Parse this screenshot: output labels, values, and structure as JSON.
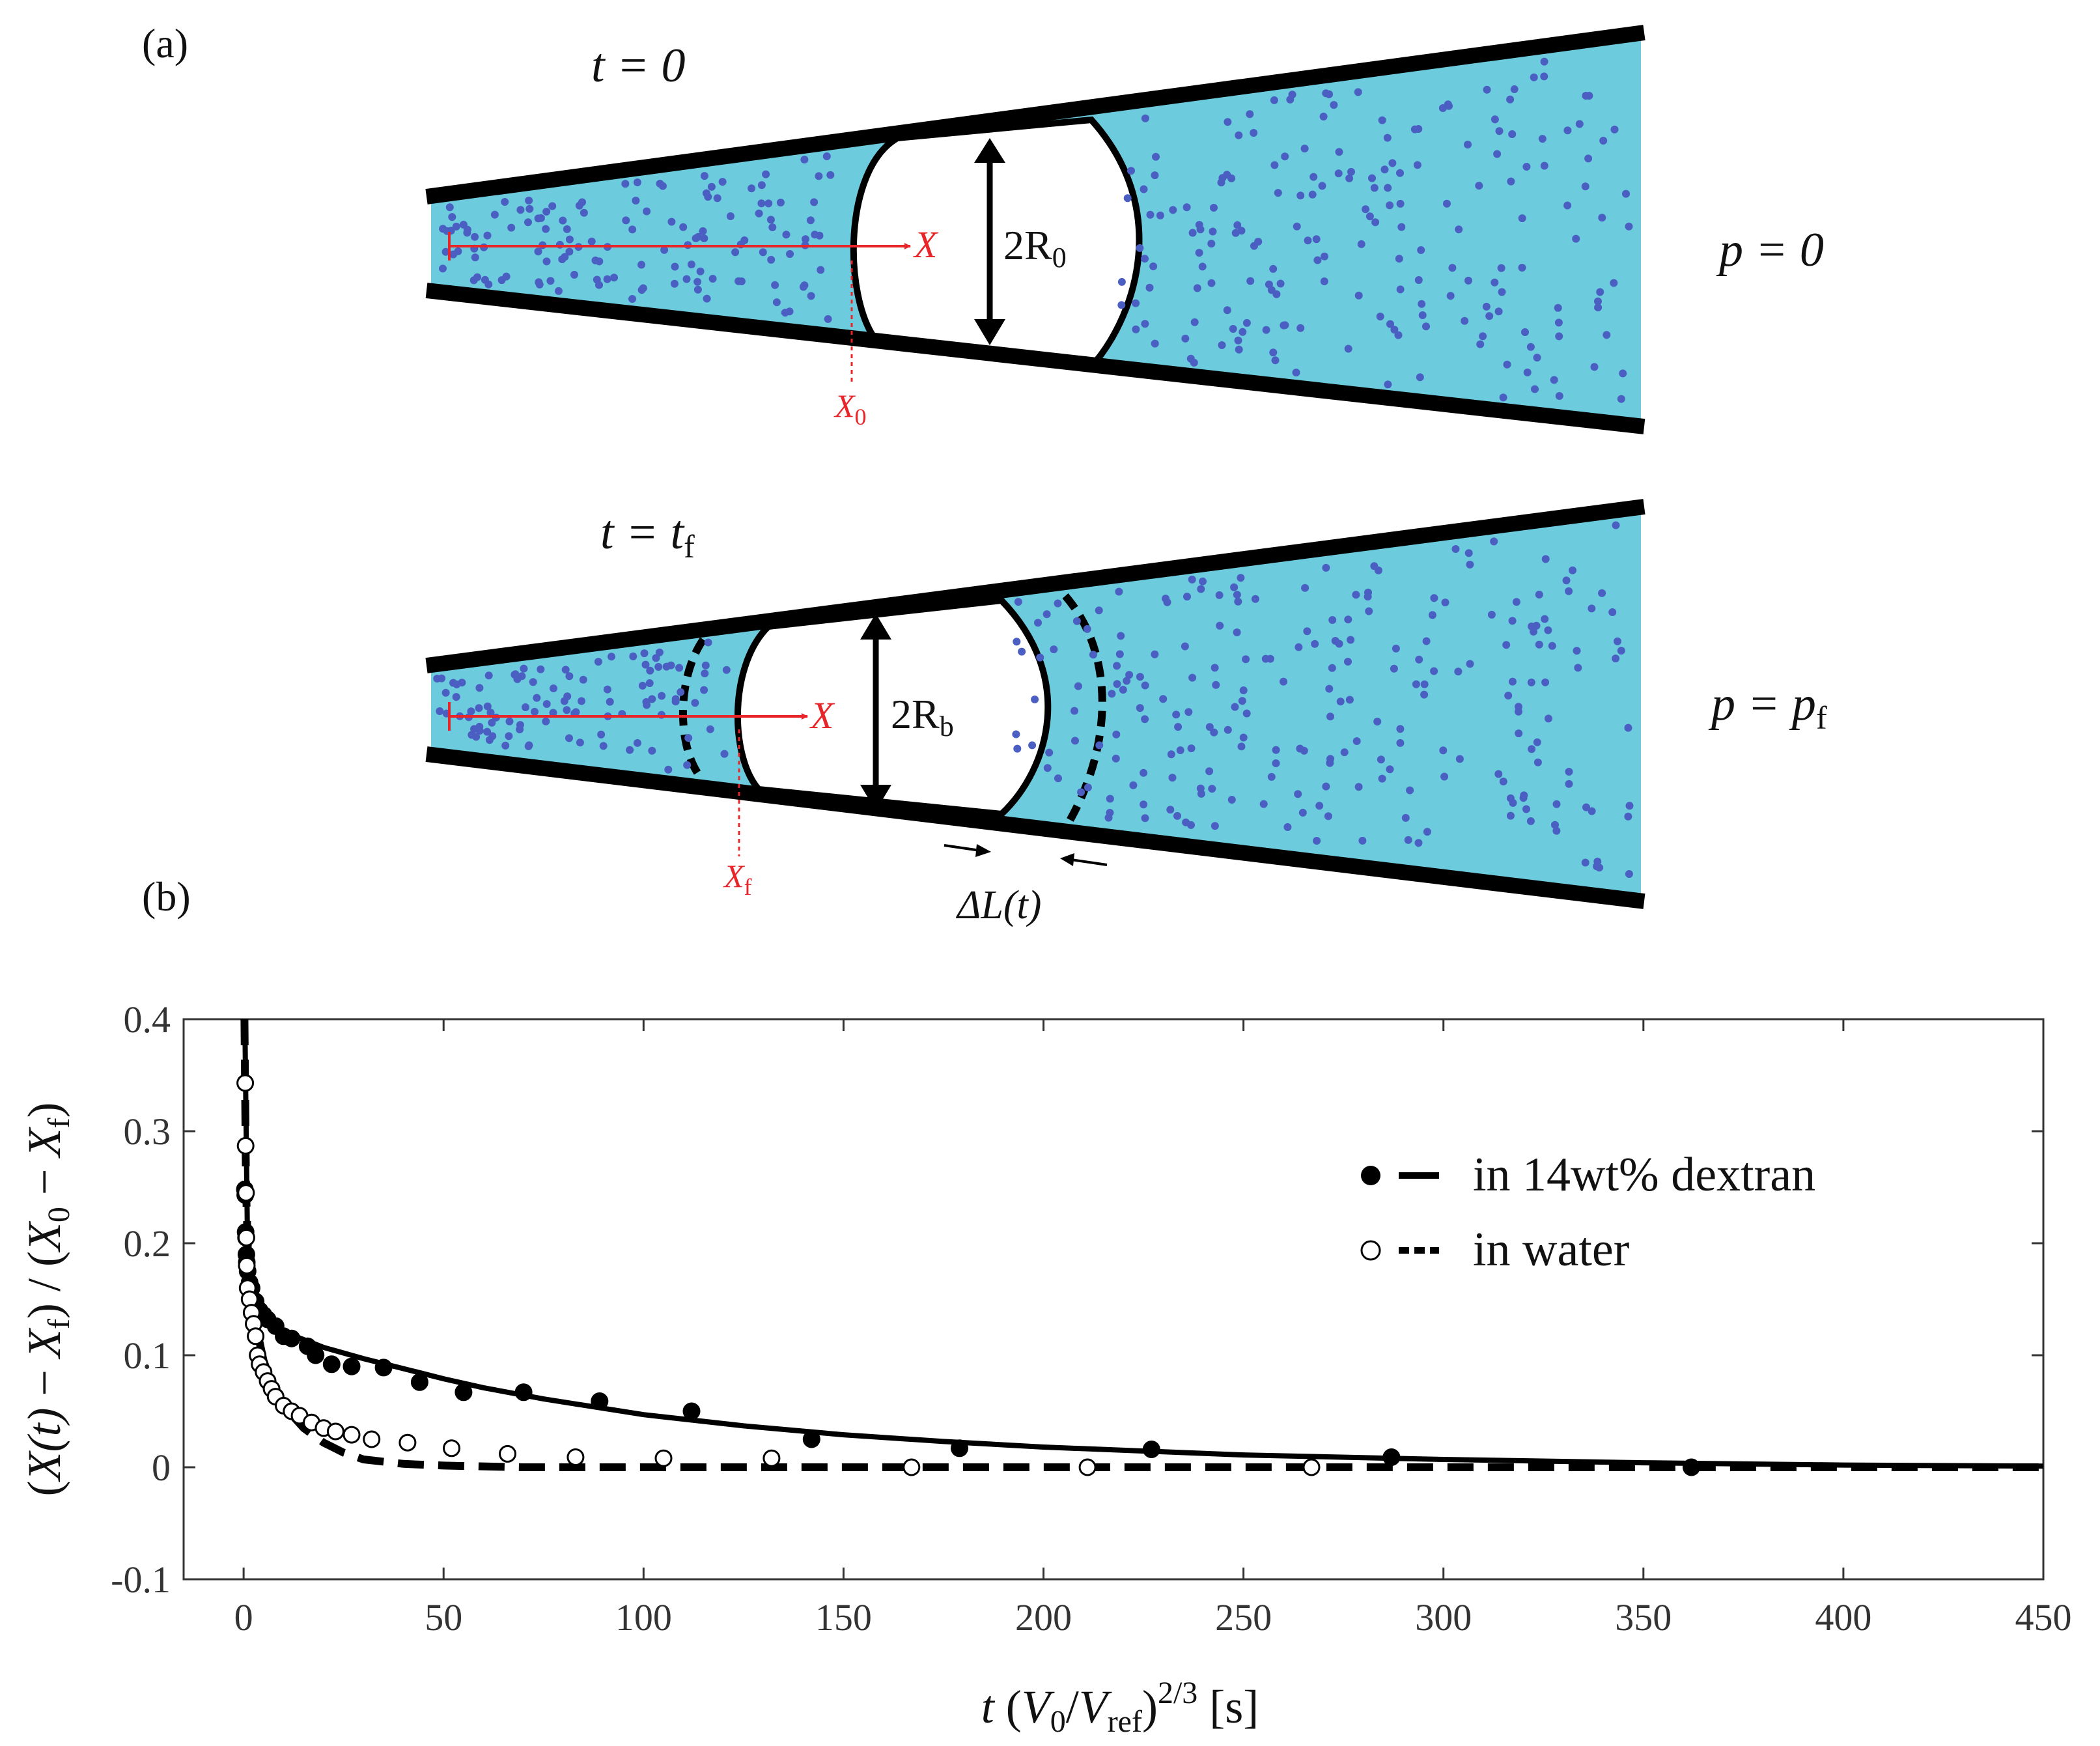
{
  "panels": {
    "a": {
      "label": "(a)",
      "top": {
        "time_eq": "t = 0",
        "pressure_eq": "p = 0",
        "position_label": "X",
        "initial_position_label": "X",
        "initial_position_sub": "0",
        "radius_label": "2R",
        "radius_sub": "0"
      },
      "bottom": {
        "time_eq": "t = t",
        "time_sub": "f",
        "pressure_eq": "p = p",
        "pressure_sub": "f",
        "position_label": "X",
        "final_position_label": "X",
        "final_position_sub": "f",
        "radius_label": "2R",
        "radius_sub": "b",
        "delta_label": "ΔL(t)"
      }
    },
    "b": {
      "label": "(b)"
    }
  },
  "colors": {
    "liquid": "#6ccbdd",
    "particle": "#4a5fc1",
    "wall": "#000000",
    "marker": "#e8262a"
  },
  "chart_data": {
    "type": "scatter",
    "title": "",
    "xlabel": "t (V0/Vref)^2/3 [s]",
    "xlabel_parts": {
      "t": "t",
      "V0": "V",
      "V0_sub": "0",
      "Vref": "V",
      "Vref_sub": "ref",
      "exp": "2/3",
      "unit": "[s]"
    },
    "ylabel": "(X(t) − Xf) / (X0 − Xf)",
    "ylabel_parts": {
      "Xt": "X(t)",
      "Xf": "X",
      "Xf_sub": "f",
      "X0": "X",
      "X0_sub": "0"
    },
    "xlim": [
      -15,
      450
    ],
    "ylim": [
      -0.1,
      0.4
    ],
    "xticks": [
      0,
      50,
      100,
      150,
      200,
      250,
      300,
      350,
      400,
      450
    ],
    "yticks": [
      -0.1,
      0,
      0.1,
      0.2,
      0.3,
      0.4
    ],
    "ytick_labels": [
      "-0.1",
      "0",
      "0.1",
      "0.2",
      "0.3",
      "0.4"
    ],
    "grid": false,
    "legend_position": "top-right",
    "legend": [
      "in 14wt% dextran",
      "in water"
    ],
    "series": [
      {
        "name": "in 14wt% dextran",
        "marker": "filled-circle",
        "points": [
          [
            0.3,
            0.248
          ],
          [
            0.4,
            0.243
          ],
          [
            0.5,
            0.21
          ],
          [
            0.6,
            0.205
          ],
          [
            0.7,
            0.19
          ],
          [
            0.8,
            0.183
          ],
          [
            1.0,
            0.175
          ],
          [
            1.5,
            0.165
          ],
          [
            2,
            0.16
          ],
          [
            3,
            0.148
          ],
          [
            4,
            0.14
          ],
          [
            5,
            0.136
          ],
          [
            6,
            0.132
          ],
          [
            8,
            0.126
          ],
          [
            10,
            0.117
          ],
          [
            12,
            0.115
          ],
          [
            16,
            0.108
          ],
          [
            18,
            0.1
          ],
          [
            22,
            0.092
          ],
          [
            27,
            0.09
          ],
          [
            35,
            0.089
          ],
          [
            44,
            0.076
          ],
          [
            55,
            0.067
          ],
          [
            70,
            0.067
          ],
          [
            89,
            0.059
          ],
          [
            112,
            0.05
          ],
          [
            142,
            0.025
          ],
          [
            179,
            0.017
          ],
          [
            227,
            0.016
          ],
          [
            287,
            0.009
          ],
          [
            362,
            0.0
          ]
        ]
      },
      {
        "name": "in water",
        "marker": "open-circle",
        "points": [
          [
            0.4,
            0.343
          ],
          [
            0.5,
            0.287
          ],
          [
            0.6,
            0.245
          ],
          [
            0.7,
            0.205
          ],
          [
            0.8,
            0.18
          ],
          [
            1.0,
            0.16
          ],
          [
            1.5,
            0.15
          ],
          [
            2,
            0.138
          ],
          [
            2.5,
            0.128
          ],
          [
            3,
            0.117
          ],
          [
            3.5,
            0.1
          ],
          [
            4,
            0.092
          ],
          [
            5,
            0.085
          ],
          [
            6,
            0.077
          ],
          [
            7,
            0.07
          ],
          [
            8,
            0.063
          ],
          [
            10,
            0.055
          ],
          [
            12,
            0.05
          ],
          [
            14,
            0.046
          ],
          [
            17,
            0.04
          ],
          [
            20,
            0.035
          ],
          [
            23,
            0.032
          ],
          [
            27,
            0.029
          ],
          [
            32,
            0.025
          ],
          [
            41,
            0.022
          ],
          [
            52,
            0.017
          ],
          [
            66,
            0.012
          ],
          [
            83,
            0.009
          ],
          [
            105,
            0.008
          ],
          [
            132,
            0.008
          ],
          [
            167,
            0.0
          ],
          [
            211,
            0.0
          ],
          [
            267,
            0.0
          ]
        ]
      },
      {
        "name": "fit 14wt% dextran",
        "style": "solid",
        "points": [
          [
            0.3,
            0.4
          ],
          [
            1,
            0.19
          ],
          [
            2,
            0.157
          ],
          [
            5,
            0.135
          ],
          [
            10,
            0.121
          ],
          [
            20,
            0.107
          ],
          [
            30,
            0.097
          ],
          [
            40,
            0.088
          ],
          [
            50,
            0.079
          ],
          [
            60,
            0.071
          ],
          [
            75,
            0.061
          ],
          [
            100,
            0.047
          ],
          [
            125,
            0.037
          ],
          [
            150,
            0.029
          ],
          [
            175,
            0.023
          ],
          [
            200,
            0.018
          ],
          [
            250,
            0.011
          ],
          [
            300,
            0.007
          ],
          [
            350,
            0.004
          ],
          [
            400,
            0.002
          ],
          [
            450,
            0.001
          ]
        ]
      },
      {
        "name": "fit water",
        "style": "dashed",
        "points": [
          [
            0.2,
            0.4
          ],
          [
            0.6,
            0.25
          ],
          [
            1,
            0.2
          ],
          [
            2,
            0.155
          ],
          [
            3,
            0.128
          ],
          [
            5,
            0.095
          ],
          [
            7,
            0.075
          ],
          [
            10,
            0.055
          ],
          [
            15,
            0.035
          ],
          [
            20,
            0.022
          ],
          [
            25,
            0.013
          ],
          [
            30,
            0.007
          ],
          [
            40,
            0.003
          ],
          [
            50,
            0.0015
          ],
          [
            70,
            0.0
          ],
          [
            100,
            0.0
          ],
          [
            200,
            0.0
          ],
          [
            300,
            0.0
          ],
          [
            400,
            0.0
          ],
          [
            450,
            0.0
          ]
        ]
      }
    ]
  }
}
